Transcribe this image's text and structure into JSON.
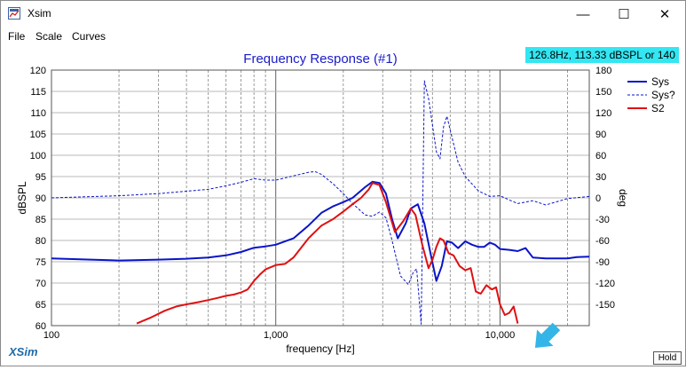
{
  "window": {
    "title": "Xsim",
    "min_glyph": "—",
    "max_glyph": "☐",
    "close_glyph": "✕"
  },
  "menu": [
    "File",
    "Scale",
    "Curves"
  ],
  "readout": "126.8Hz, 113.33 dBSPL or 140",
  "logo": "XSim",
  "hold_label": "Hold",
  "colors": {
    "sys": "#0a14c8",
    "sys_phase": "#0a14c8",
    "s2": "#e01010",
    "title": "#1a1acc",
    "arrow": "#33b5e8",
    "readout_bg": "#33e6f2"
  },
  "chart_data": {
    "type": "line",
    "title": "Frequency Response (#1)",
    "xlabel": "frequency [Hz]",
    "ylabel": "dBSPL",
    "y2label": "deg",
    "xscale": "log",
    "xlim": [
      100,
      25000
    ],
    "ylim": [
      60,
      120
    ],
    "y2lim": [
      -180,
      180
    ],
    "grid": true,
    "legend_position": "top-right",
    "x_ticks": [
      100,
      1000,
      10000
    ],
    "x_tick_labels": [
      "100",
      "1,000",
      "10,000"
    ],
    "y_ticks": [
      60,
      65,
      70,
      75,
      80,
      85,
      90,
      95,
      100,
      105,
      110,
      115,
      120
    ],
    "y_tick_labels": [
      "60",
      "65",
      "70",
      "75",
      "80",
      "85",
      "90",
      "95",
      "100",
      "105",
      "110",
      "115",
      "120"
    ],
    "y2_ticks": [
      -150,
      -120,
      -90,
      -60,
      -30,
      0,
      30,
      60,
      90,
      120,
      150,
      180
    ],
    "y2_tick_labels": [
      "-150",
      "-120",
      "-90",
      "-60",
      "-30",
      "0",
      "30",
      "60",
      "90",
      "120",
      "150",
      "180"
    ],
    "series": [
      {
        "name": "Sys",
        "axis": "left",
        "style": "solid",
        "width": 2,
        "x": [
          100,
          150,
          200,
          300,
          400,
          500,
          600,
          700,
          800,
          900,
          1000,
          1200,
          1400,
          1600,
          1800,
          2000,
          2200,
          2500,
          2700,
          2900,
          3100,
          3300,
          3500,
          3800,
          4000,
          4300,
          4600,
          4900,
          5200,
          5500,
          5800,
          6100,
          6500,
          7000,
          7500,
          8000,
          8500,
          9000,
          9500,
          10000,
          11000,
          12000,
          13000,
          14000,
          16000,
          18000,
          20000,
          22000,
          25000
        ],
        "y": [
          75.8,
          75.5,
          75.3,
          75.5,
          75.7,
          76,
          76.5,
          77.3,
          78.3,
          78.6,
          79,
          80.5,
          83.5,
          86.5,
          88,
          89,
          90,
          92.5,
          93.8,
          93.5,
          91,
          85,
          80.5,
          84,
          87.5,
          88.5,
          84,
          77,
          70.5,
          74,
          79.8,
          79.5,
          78.2,
          79.8,
          79,
          78.5,
          78.5,
          79.5,
          79,
          78,
          77.8,
          77.5,
          78.2,
          76,
          75.8,
          75.8,
          75.8,
          76.1,
          76.2
        ]
      },
      {
        "name": "Sys?",
        "axis": "right",
        "style": "dashed",
        "width": 1,
        "x": [
          100,
          200,
          300,
          500,
          600,
          700,
          800,
          900,
          1000,
          1200,
          1400,
          1500,
          1600,
          1800,
          2000,
          2200,
          2500,
          2700,
          2900,
          3100,
          3300,
          3600,
          3900,
          4100,
          4250,
          4350,
          4450,
          4600,
          4800,
          5000,
          5200,
          5400,
          5600,
          5800,
          6000,
          6500,
          7000,
          8000,
          9000,
          10000,
          11000,
          12000,
          14000,
          16000,
          20000,
          25000
        ],
        "y": [
          0,
          3,
          6,
          12,
          17,
          22,
          27,
          25,
          25,
          31,
          36,
          37,
          33,
          20,
          6,
          -8,
          -24,
          -26,
          -20,
          -28,
          -60,
          -110,
          -122,
          -105,
          -100,
          -140,
          -178,
          165,
          140,
          102,
          65,
          55,
          100,
          115,
          95,
          50,
          30,
          10,
          2,
          3,
          -3,
          -8,
          -4,
          -10,
          -1,
          2
        ]
      },
      {
        "name": "S2",
        "axis": "left",
        "style": "solid",
        "width": 2,
        "x": [
          240,
          280,
          320,
          360,
          400,
          450,
          500,
          550,
          600,
          650,
          700,
          750,
          800,
          850,
          900,
          1000,
          1100,
          1200,
          1400,
          1600,
          1800,
          2000,
          2200,
          2400,
          2600,
          2700,
          2900,
          3100,
          3400,
          3700,
          4000,
          4200,
          4500,
          4800,
          5000,
          5200,
          5400,
          5600,
          5900,
          6200,
          6600,
          7000,
          7400,
          7800,
          8200,
          8700,
          9200,
          9600,
          10000,
          10500,
          11000,
          11500,
          12000
        ],
        "y": [
          60.5,
          62,
          63.5,
          64.5,
          65,
          65.5,
          66,
          66.5,
          67,
          67.3,
          67.8,
          68.5,
          70.5,
          72,
          73.2,
          74.2,
          74.5,
          76,
          80.5,
          83.5,
          85,
          86.8,
          88.5,
          90,
          92,
          93.5,
          93,
          89,
          82,
          84.5,
          87.5,
          86,
          79,
          73.5,
          75.5,
          78.5,
          80.5,
          80,
          77,
          76.5,
          74,
          73,
          73.5,
          68,
          67.5,
          69.5,
          68.5,
          69,
          65,
          62.5,
          63,
          64.5,
          60.5
        ]
      }
    ]
  }
}
